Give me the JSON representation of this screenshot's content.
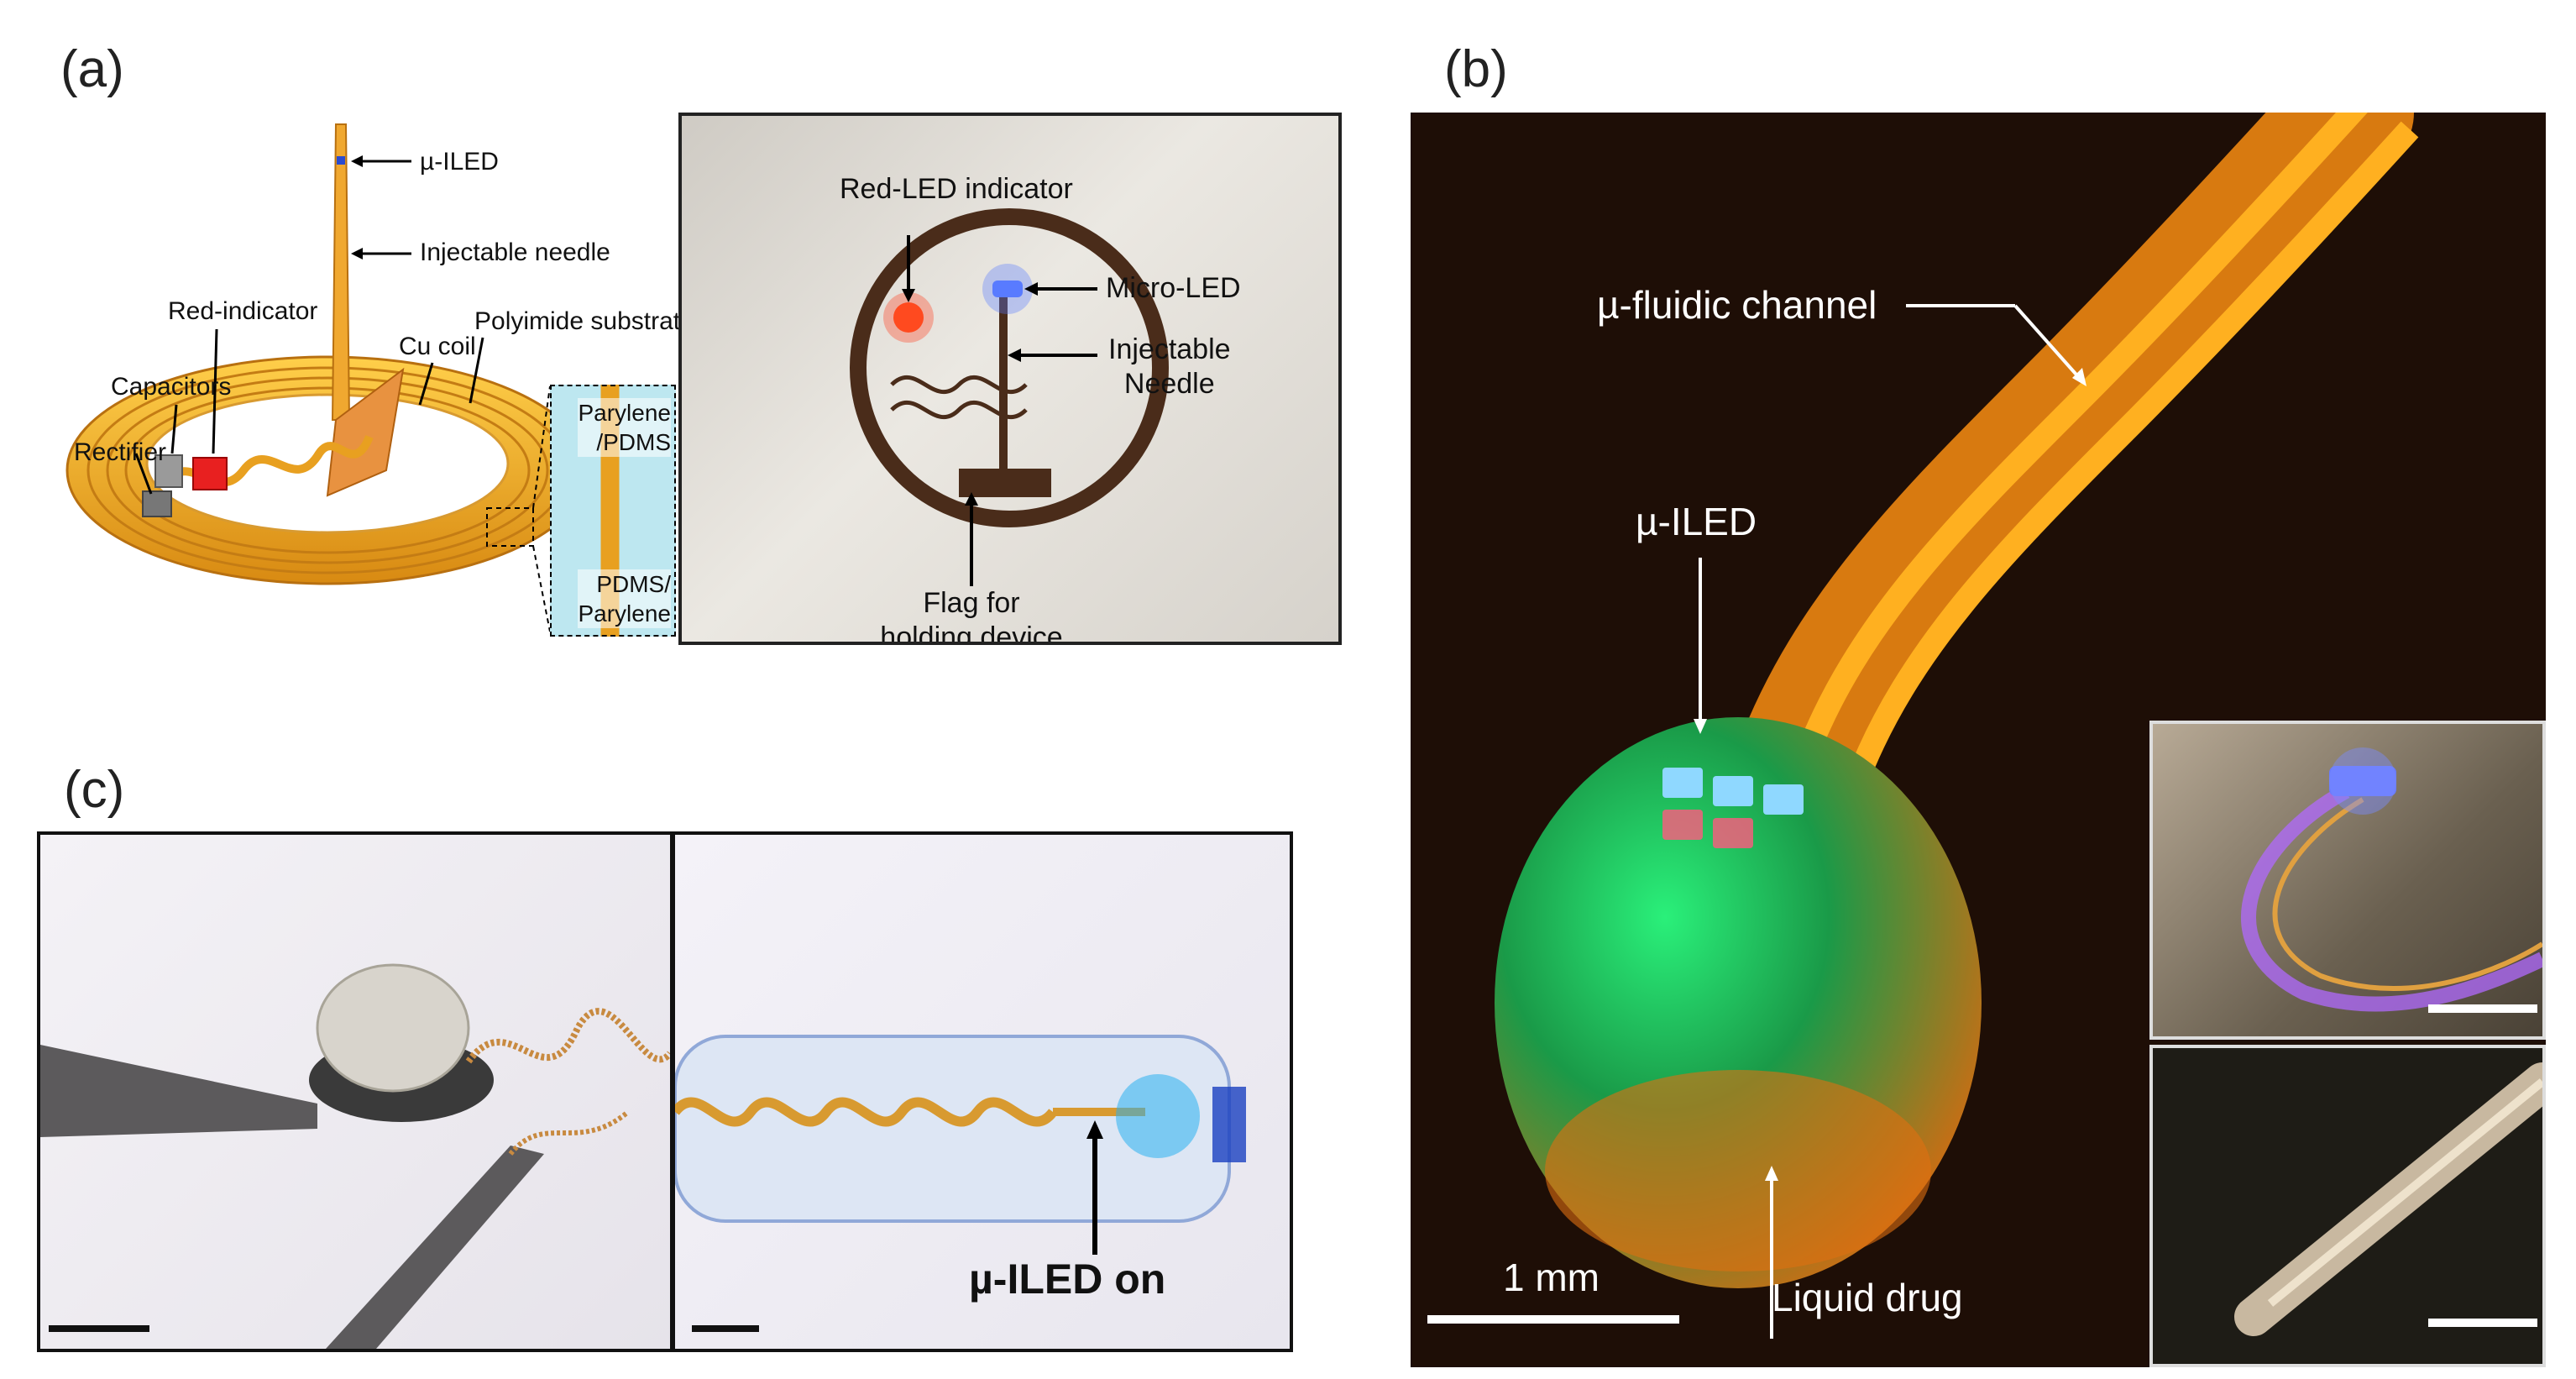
{
  "panels": {
    "a": {
      "letter": "(a)",
      "diagram_labels": {
        "uiled": "µ-ILED",
        "injectable_needle": "Injectable needle",
        "red_indicator": "Red-indicator",
        "cu_coil": "Cu coil",
        "polyimide": "Polyimide substrate",
        "capacitors": "Capacitors",
        "rectifier": "Rectifier",
        "parylene_pdms_1": "Parylene",
        "parylene_pdms_2": "/PDMS",
        "pdms_parylene_1": "PDMS/",
        "pdms_parylene_2": "Parylene"
      },
      "photo_labels": {
        "red_led": "Red-LED indicator",
        "micro_led": "Micro-LED",
        "needle_1": "Injectable",
        "needle_2": "Needle",
        "flag_1": "Flag for",
        "flag_2": "holding device"
      }
    },
    "b": {
      "letter": "(b)",
      "labels": {
        "channel": "µ-fluidic channel",
        "uiled": "µ-ILED",
        "drug": "Liquid drug",
        "scale": "1 mm"
      }
    },
    "c": {
      "letter": "(c)",
      "labels": {
        "uiled_on": "µ-ILED on"
      }
    }
  },
  "colors": {
    "copper": "#e8a020",
    "coil_dark": "#c8801a",
    "led_green": "#27d06a",
    "led_blue": "#3c8cff",
    "red_indicator": "#e82020",
    "dark_bg": "#1e0e06"
  }
}
